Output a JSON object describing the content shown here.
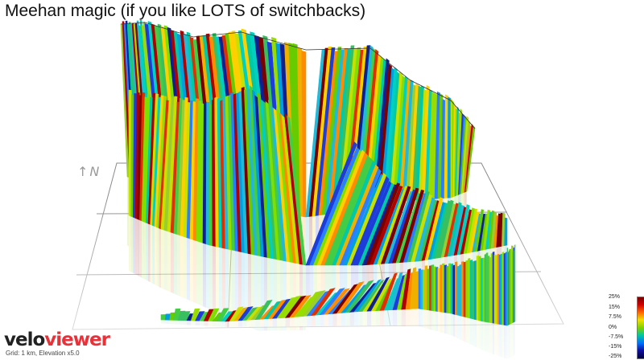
{
  "title": "Meehan magic (if you like LOTS of switchbacks)",
  "north_label": "N",
  "logo": {
    "part1": "velo",
    "part2": "viewer"
  },
  "grid_info": "Grid: 1 km, Elevation x5.0",
  "legend": {
    "labels": [
      "25%",
      "15%",
      "7.5%",
      "0%",
      "-7.5%",
      "-15%",
      "-25%"
    ]
  },
  "colors": {
    "steep_up": "#8b0000",
    "up": "#ff7f00",
    "flat": "#66cc00",
    "down": "#00b0d0",
    "steep_down": "#1a1aa8",
    "grid": "#8a8a8a"
  }
}
